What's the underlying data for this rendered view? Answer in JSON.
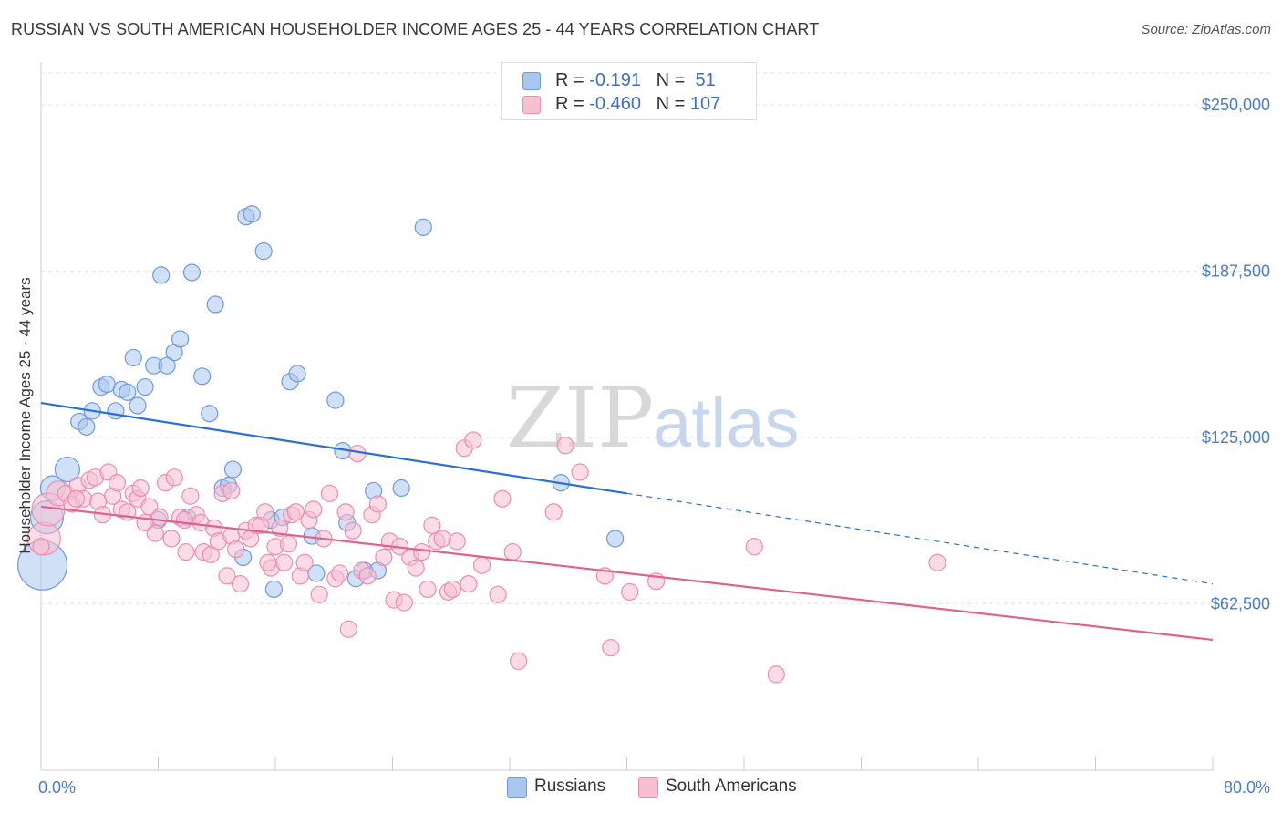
{
  "header": {
    "title": "RUSSIAN VS SOUTH AMERICAN HOUSEHOLDER INCOME AGES 25 - 44 YEARS CORRELATION CHART",
    "source": "Source: ZipAtlas.com"
  },
  "legend": {
    "rows": [
      {
        "r_label": "R = ",
        "r_value": "-0.191",
        "n_label": "N = ",
        "n_value": " 51",
        "color": "#a9c6f0",
        "border": "#6d9ae0"
      },
      {
        "r_label": "R = ",
        "r_value": "-0.460",
        "n_label": "N = ",
        "n_value": "107",
        "color": "#f7bfd1",
        "border": "#ec8cae"
      }
    ]
  },
  "watermark": {
    "zip": "ZIP",
    "atlas": "atlas"
  },
  "chart_data": {
    "type": "scatter",
    "title": "RUSSIAN VS SOUTH AMERICAN HOUSEHOLDER INCOME AGES 25 - 44 YEARS CORRELATION CHART",
    "xlabel": "",
    "ylabel": "Householder Income Ages 25 - 44 years",
    "xlim": [
      0,
      80
    ],
    "ylim": [
      0,
      262000
    ],
    "x_tick_labels": [
      "0.0%",
      "80.0%"
    ],
    "y_ticks": [
      62500,
      125000,
      187500,
      250000
    ],
    "y_tick_labels": [
      "$62,500",
      "$125,000",
      "$187,500",
      "$250,000"
    ],
    "grid": true,
    "legend_position": "top-center",
    "series": [
      {
        "name": "Russians",
        "color": "#a9c6f0",
        "stroke": "#6d9ae0",
        "trend": {
          "x0": 0,
          "y0": 138000,
          "x1": 40,
          "y1": 104000,
          "dash_to_x": 80,
          "dash_to_y": 70000,
          "color": "#2a6fd4"
        },
        "points": [
          [
            0.1,
            77000,
            3
          ],
          [
            0.4,
            95000,
            2
          ],
          [
            0.8,
            106000,
            1.5
          ],
          [
            1.8,
            113000,
            1.5
          ],
          [
            2.6,
            131000,
            1
          ],
          [
            3.1,
            129000,
            1
          ],
          [
            3.5,
            135000,
            1
          ],
          [
            4.1,
            144000,
            1
          ],
          [
            4.5,
            145000,
            1
          ],
          [
            5.1,
            135000,
            1
          ],
          [
            5.5,
            143000,
            1
          ],
          [
            5.9,
            142000,
            1
          ],
          [
            6.3,
            155000,
            1
          ],
          [
            6.6,
            137000,
            1
          ],
          [
            7.1,
            144000,
            1
          ],
          [
            7.7,
            152000,
            1
          ],
          [
            8.2,
            186000,
            1
          ],
          [
            8.6,
            152000,
            1
          ],
          [
            9.1,
            157000,
            1
          ],
          [
            9.5,
            162000,
            1
          ],
          [
            10.3,
            187000,
            1
          ],
          [
            11.0,
            148000,
            1
          ],
          [
            11.5,
            134000,
            1
          ],
          [
            11.9,
            175000,
            1
          ],
          [
            12.4,
            106000,
            1
          ],
          [
            12.8,
            107000,
            1
          ],
          [
            13.1,
            113000,
            1
          ],
          [
            13.8,
            80000,
            1
          ],
          [
            14.0,
            208000,
            1
          ],
          [
            14.4,
            209000,
            1
          ],
          [
            15.2,
            195000,
            1
          ],
          [
            15.7,
            94000,
            1
          ],
          [
            15.9,
            68000,
            1
          ],
          [
            16.5,
            95000,
            1
          ],
          [
            17.0,
            146000,
            1
          ],
          [
            17.5,
            149000,
            1
          ],
          [
            18.5,
            88000,
            1
          ],
          [
            18.8,
            74000,
            1
          ],
          [
            20.1,
            139000,
            1
          ],
          [
            20.6,
            120000,
            1
          ],
          [
            20.9,
            93000,
            1
          ],
          [
            21.5,
            72000,
            1
          ],
          [
            22.1,
            75000,
            1
          ],
          [
            22.7,
            105000,
            1
          ],
          [
            23.0,
            75000,
            1
          ],
          [
            24.6,
            106000,
            1
          ],
          [
            26.1,
            204000,
            1
          ],
          [
            35.5,
            108000,
            1
          ],
          [
            39.2,
            87000,
            1
          ],
          [
            10.0,
            95000,
            1
          ],
          [
            8.0,
            94000,
            1
          ]
        ]
      },
      {
        "name": "South Americans",
        "color": "#f7bfd1",
        "stroke": "#ec8cae",
        "trend": {
          "x0": 0,
          "y0": 99000,
          "x1": 80,
          "y1": 49000,
          "color": "#e0608e"
        },
        "points": [
          [
            0.2,
            87000,
            2
          ],
          [
            0.5,
            98000,
            2
          ],
          [
            1.2,
            104000,
            1.5
          ],
          [
            1.7,
            104000,
            1
          ],
          [
            2.1,
            100000,
            1
          ],
          [
            2.5,
            107000,
            1
          ],
          [
            2.9,
            102000,
            1
          ],
          [
            3.3,
            109000,
            1
          ],
          [
            3.7,
            110000,
            1
          ],
          [
            3.9,
            101000,
            1
          ],
          [
            4.2,
            96000,
            1
          ],
          [
            4.6,
            112000,
            1
          ],
          [
            4.9,
            103000,
            1
          ],
          [
            5.2,
            108000,
            1
          ],
          [
            5.5,
            98000,
            1
          ],
          [
            5.9,
            97000,
            1
          ],
          [
            6.3,
            104000,
            1
          ],
          [
            6.6,
            102000,
            1
          ],
          [
            6.8,
            106000,
            1
          ],
          [
            7.1,
            93000,
            1
          ],
          [
            7.4,
            99000,
            1
          ],
          [
            7.8,
            89000,
            1
          ],
          [
            8.1,
            95000,
            1
          ],
          [
            8.5,
            108000,
            1
          ],
          [
            8.9,
            87000,
            1
          ],
          [
            9.1,
            110000,
            1
          ],
          [
            9.5,
            95000,
            1
          ],
          [
            9.9,
            82000,
            1
          ],
          [
            10.2,
            103000,
            1
          ],
          [
            10.6,
            96000,
            1
          ],
          [
            10.9,
            93000,
            1
          ],
          [
            11.1,
            82000,
            1
          ],
          [
            11.6,
            81000,
            1
          ],
          [
            11.8,
            91000,
            1
          ],
          [
            12.1,
            86000,
            1
          ],
          [
            12.4,
            104000,
            1
          ],
          [
            12.7,
            73000,
            1
          ],
          [
            13.0,
            88000,
            1
          ],
          [
            13.3,
            83000,
            1
          ],
          [
            13.6,
            70000,
            1
          ],
          [
            14.0,
            90000,
            1
          ],
          [
            14.3,
            87000,
            1
          ],
          [
            14.7,
            92000,
            1
          ],
          [
            15.0,
            92000,
            1
          ],
          [
            15.3,
            97000,
            1
          ],
          [
            15.7,
            76000,
            1
          ],
          [
            16.0,
            84000,
            1
          ],
          [
            16.3,
            91000,
            1
          ],
          [
            16.6,
            78000,
            1
          ],
          [
            16.9,
            85000,
            1
          ],
          [
            17.1,
            96000,
            1
          ],
          [
            17.4,
            97000,
            1
          ],
          [
            17.7,
            73000,
            1
          ],
          [
            18.0,
            78000,
            1
          ],
          [
            18.3,
            94000,
            1
          ],
          [
            18.6,
            98000,
            1
          ],
          [
            19.0,
            66000,
            1
          ],
          [
            19.3,
            87000,
            1
          ],
          [
            19.7,
            104000,
            1
          ],
          [
            20.1,
            72000,
            1
          ],
          [
            20.4,
            74000,
            1
          ],
          [
            20.8,
            97000,
            1
          ],
          [
            21.0,
            53000,
            1
          ],
          [
            21.3,
            90000,
            1
          ],
          [
            21.6,
            119000,
            1
          ],
          [
            21.9,
            75000,
            1
          ],
          [
            22.3,
            73000,
            1
          ],
          [
            22.6,
            96000,
            1
          ],
          [
            23.0,
            100000,
            1
          ],
          [
            23.4,
            80000,
            1
          ],
          [
            23.8,
            86000,
            1
          ],
          [
            24.1,
            64000,
            1
          ],
          [
            24.5,
            84000,
            1
          ],
          [
            24.8,
            63000,
            1
          ],
          [
            25.2,
            80000,
            1
          ],
          [
            25.6,
            76000,
            1
          ],
          [
            26.0,
            82000,
            1
          ],
          [
            26.4,
            68000,
            1
          ],
          [
            26.7,
            92000,
            1
          ],
          [
            27.0,
            86000,
            1
          ],
          [
            27.4,
            87000,
            1
          ],
          [
            27.8,
            67000,
            1
          ],
          [
            28.1,
            68000,
            1
          ],
          [
            28.4,
            86000,
            1
          ],
          [
            28.9,
            121000,
            1
          ],
          [
            29.2,
            70000,
            1
          ],
          [
            29.5,
            124000,
            1
          ],
          [
            30.1,
            77000,
            1
          ],
          [
            31.2,
            66000,
            1
          ],
          [
            31.5,
            102000,
            1
          ],
          [
            32.2,
            82000,
            1
          ],
          [
            32.6,
            41000,
            1
          ],
          [
            35.0,
            97000,
            1
          ],
          [
            35.8,
            122000,
            1
          ],
          [
            36.8,
            112000,
            1
          ],
          [
            38.5,
            73000,
            1
          ],
          [
            38.9,
            46000,
            1
          ],
          [
            40.2,
            67000,
            1
          ],
          [
            42.0,
            71000,
            1
          ],
          [
            48.7,
            84000,
            1
          ],
          [
            50.2,
            36000,
            1
          ],
          [
            61.2,
            78000,
            1
          ],
          [
            9.8,
            94000,
            1
          ],
          [
            15.5,
            78000,
            1
          ],
          [
            13.0,
            105000,
            1
          ],
          [
            0.0,
            84000,
            1
          ],
          [
            2.4,
            102000,
            1
          ]
        ]
      }
    ]
  },
  "bottom_legend": [
    {
      "label": "Russians",
      "color": "#a9c6f0",
      "border": "#6d9ae0"
    },
    {
      "label": "South Americans",
      "color": "#f7bfd1",
      "border": "#ec8cae"
    }
  ]
}
